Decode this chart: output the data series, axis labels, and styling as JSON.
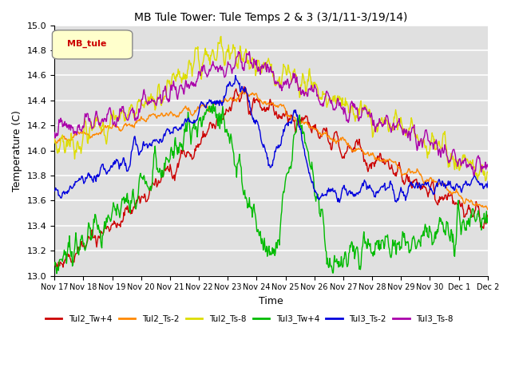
{
  "title": "MB Tule Tower: Tule Temps 2 & 3 (3/1/11-3/19/14)",
  "xlabel": "Time",
  "ylabel": "Temperature (C)",
  "ylim": [
    13.0,
    15.0
  ],
  "yticks": [
    13.0,
    13.2,
    13.4,
    13.6,
    13.8,
    14.0,
    14.2,
    14.4,
    14.6,
    14.8,
    15.0
  ],
  "xtick_labels": [
    "Nov 17",
    "Nov 18",
    "Nov 19",
    "Nov 20",
    "Nov 21",
    "Nov 22",
    "Nov 23",
    "Nov 24",
    "Nov 25",
    "Nov 26",
    "Nov 27",
    "Nov 28",
    "Nov 29",
    "Nov 30",
    "Dec 1",
    "Dec 2"
  ],
  "series": {
    "Tul2_Tw+4": {
      "color": "#cc0000"
    },
    "Tul2_Ts-2": {
      "color": "#ff8800"
    },
    "Tul2_Ts-8": {
      "color": "#dddd00"
    },
    "Tul3_Tw+4": {
      "color": "#00bb00"
    },
    "Tul3_Ts-2": {
      "color": "#0000dd"
    },
    "Tul3_Ts-8": {
      "color": "#aa00aa"
    }
  },
  "legend_label": "MB_tule",
  "legend_color": "#cc0000",
  "background_color": "#e0e0e0",
  "grid_color": "#ffffff",
  "figsize": [
    6.4,
    4.8
  ],
  "dpi": 100
}
